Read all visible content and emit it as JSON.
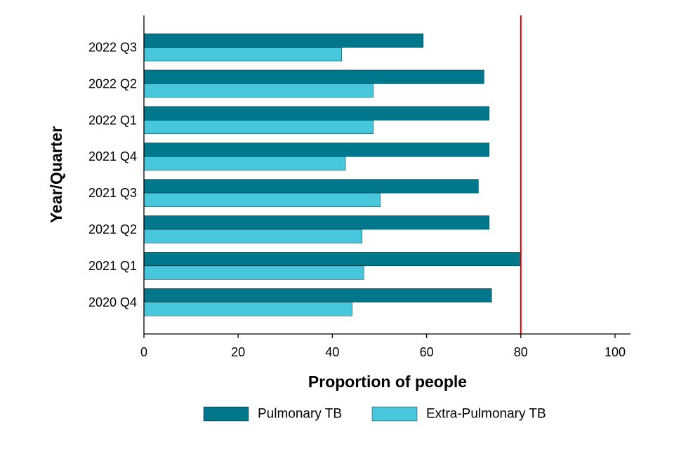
{
  "chart_data": {
    "type": "bar",
    "orientation": "horizontal",
    "title": "",
    "xlabel": "Proportion of people",
    "ylabel": "Year/Quarter",
    "xlim": [
      0,
      100
    ],
    "x_ticks": [
      "0",
      "20",
      "40",
      "60",
      "80",
      "100"
    ],
    "categories": [
      "2022 Q3",
      "2022 Q2",
      "2022 Q1",
      "2021 Q4",
      "2021 Q3",
      "2021 Q2",
      "2021 Q1",
      "2020 Q4"
    ],
    "series": [
      {
        "name": "Pulmonary TB",
        "color": "#00778b",
        "values": [
          59.3,
          72.2,
          73.3,
          73.3,
          71.0,
          73.3,
          79.8,
          73.8
        ]
      },
      {
        "name": "Extra-Pulmonary TB",
        "color": "#47c6dc",
        "values": [
          42.0,
          48.7,
          48.7,
          42.8,
          50.2,
          46.3,
          46.7,
          44.2
        ]
      }
    ],
    "reference_line": {
      "value": 80,
      "color": "#e00000"
    },
    "grid": false,
    "legend_position": "bottom"
  }
}
